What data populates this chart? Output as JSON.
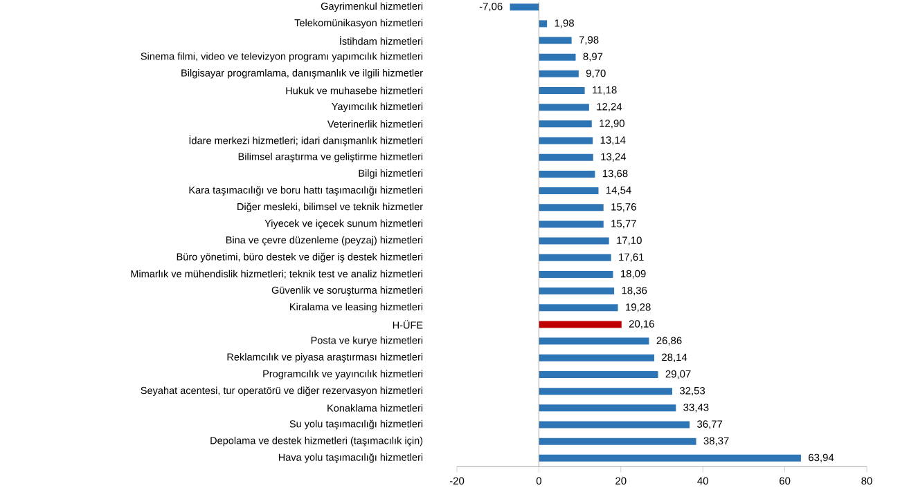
{
  "chart_data": {
    "type": "bar",
    "orientation": "horizontal",
    "categories": [
      "Gayrimenkul hizmetleri",
      "Telekomünikasyon hizmetleri",
      "İstihdam hizmetleri",
      "Sinema filmi, video ve televizyon programı yapımcılık hizmetleri",
      "Bilgisayar programlama, danışmanlık ve ilgili hizmetler",
      "Hukuk ve muhasebe hizmetleri",
      "Yayımcılık hizmetleri",
      "Veterinerlik hizmetleri",
      "İdare merkezi hizmetleri; idari danışmanlık hizmetleri",
      "Bilimsel araştırma ve geliştirme hizmetleri",
      "Bilgi hizmetleri",
      "Kara taşımacılığı ve boru hattı taşımacılığı hizmetleri",
      "Diğer mesleki, bilimsel ve teknik hizmetler",
      "Yiyecek ve içecek sunum hizmetleri",
      "Bina ve çevre düzenleme (peyzaj) hizmetleri",
      "Büro yönetimi, büro destek ve diğer iş destek hizmetleri",
      "Mimarlık ve mühendislik hizmetleri; teknik test ve analiz hizmetleri",
      "Güvenlik ve soruşturma hizmetleri",
      "Kiralama ve leasing hizmetleri",
      "H-ÜFE",
      "Posta ve kurye hizmetleri",
      "Reklamcılık ve piyasa araştırması hizmetleri",
      "Programcılık ve yayıncılık hizmetleri",
      "Seyahat acentesi, tur operatörü ve diğer rezervasyon hizmetleri",
      "Konaklama hizmetleri",
      "Su yolu taşımacılığı hizmetleri",
      "Depolama ve destek hizmetleri (taşımacılık için)",
      "Hava yolu taşımacılığı hizmetleri"
    ],
    "values": [
      -7.06,
      1.98,
      7.98,
      8.97,
      9.7,
      11.18,
      12.24,
      12.9,
      13.14,
      13.24,
      13.68,
      14.54,
      15.76,
      15.77,
      17.1,
      17.61,
      18.09,
      18.36,
      19.28,
      20.16,
      26.86,
      28.14,
      29.07,
      32.53,
      33.43,
      36.77,
      38.37,
      63.94
    ],
    "value_labels": [
      "-7,06",
      "1,98",
      "7,98",
      "8,97",
      "9,70",
      "11,18",
      "12,24",
      "12,90",
      "13,14",
      "13,24",
      "13,68",
      "14,54",
      "15,76",
      "15,77",
      "17,10",
      "17,61",
      "18,09",
      "18,36",
      "19,28",
      "20,16",
      "26,86",
      "28,14",
      "29,07",
      "32,53",
      "33,43",
      "36,77",
      "38,37",
      "63,94"
    ],
    "colors": [
      "#2e75b6",
      "#2e75b6",
      "#2e75b6",
      "#2e75b6",
      "#2e75b6",
      "#2e75b6",
      "#2e75b6",
      "#2e75b6",
      "#2e75b6",
      "#2e75b6",
      "#2e75b6",
      "#2e75b6",
      "#2e75b6",
      "#2e75b6",
      "#2e75b6",
      "#2e75b6",
      "#2e75b6",
      "#2e75b6",
      "#2e75b6",
      "#c00000",
      "#2e75b6",
      "#2e75b6",
      "#2e75b6",
      "#2e75b6",
      "#2e75b6",
      "#2e75b6",
      "#2e75b6",
      "#2e75b6"
    ],
    "xlim": [
      -20,
      80
    ],
    "xticks": [
      -20,
      0,
      20,
      40,
      60,
      80
    ]
  }
}
